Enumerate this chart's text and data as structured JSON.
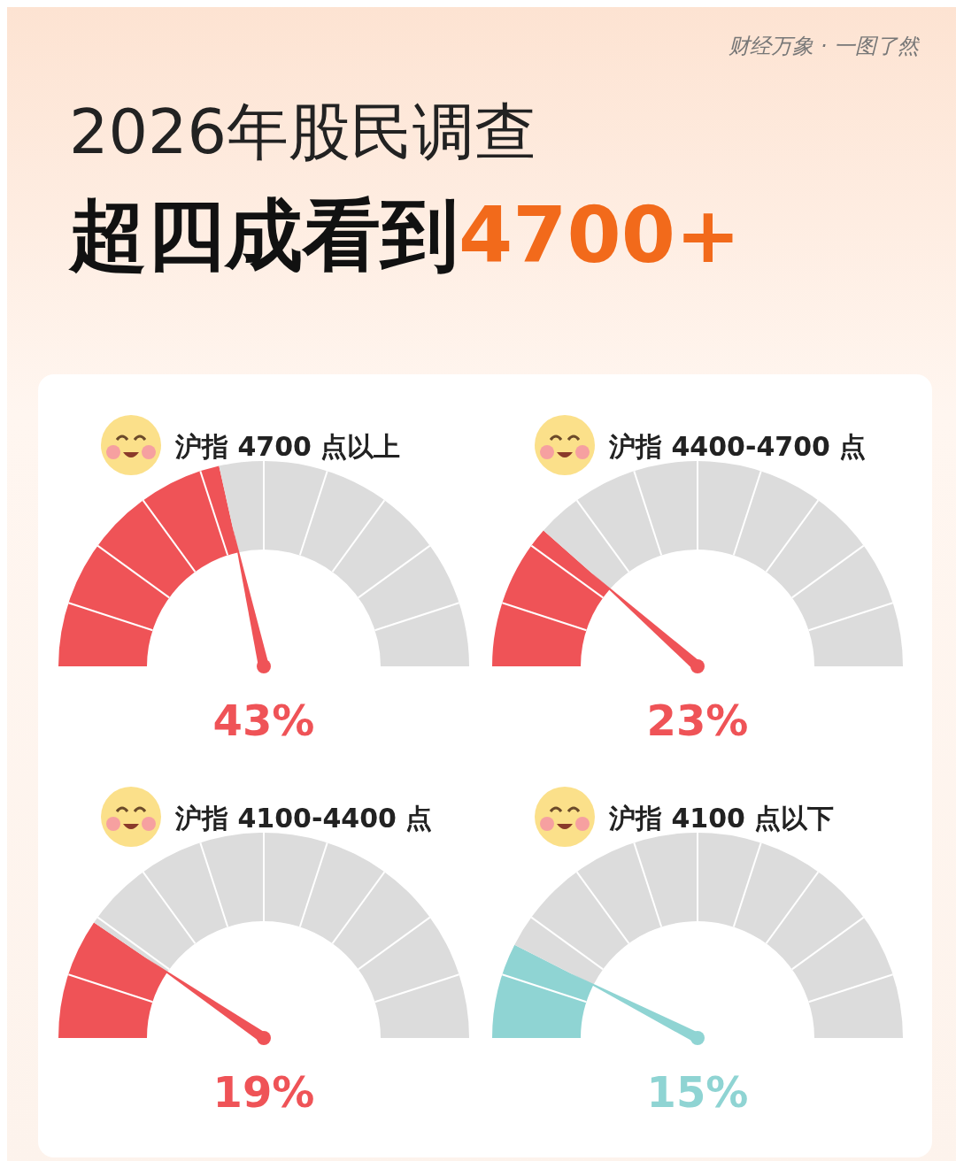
{
  "chart_data": [
    {
      "type": "other",
      "title": "2026年股民调查",
      "subtitle": "超四成看到4700+",
      "annotations": [
        "财经万象 · 一图了然"
      ]
    },
    {
      "type": "donut",
      "title": "沪指 4700 点以上",
      "categories": [
        null,
        null
      ],
      "values": [
        43,
        57
      ],
      "colors": [
        "#ef5357",
        "#dcdcdc"
      ],
      "annotations": [
        "43%"
      ]
    },
    {
      "type": "donut",
      "title": "沪指 4400-4700 点",
      "categories": [
        null,
        null
      ],
      "values": [
        23,
        77
      ],
      "colors": [
        "#ef5357",
        "#dcdcdc"
      ],
      "annotations": [
        "23%"
      ]
    },
    {
      "type": "donut",
      "title": "沪指 4100-4400 点",
      "categories": [
        null,
        null
      ],
      "values": [
        19,
        81
      ],
      "colors": [
        "#ef5357",
        "#dcdcdc"
      ],
      "annotations": [
        "19%"
      ]
    },
    {
      "type": "donut",
      "title": "沪指 4100 点以下",
      "categories": [
        null,
        null
      ],
      "values": [
        15,
        85
      ],
      "colors": [
        "#8fd4d3",
        "#dcdcdc"
      ],
      "annotations": [
        "15%"
      ]
    }
  ]
}
